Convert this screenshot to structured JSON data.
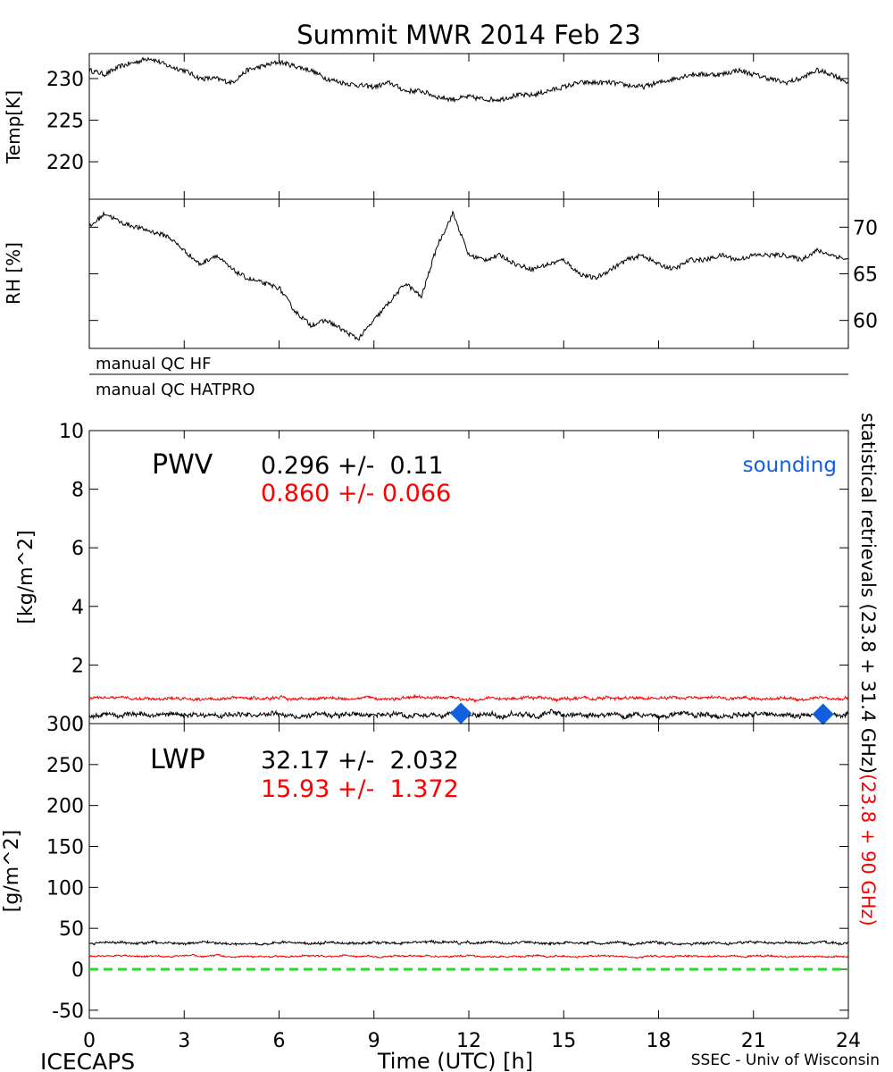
{
  "title": "Summit MWR 2014 Feb 23",
  "footer": {
    "left": "ICECAPS",
    "center": "Time (UTC) [h]",
    "right": "SSEC - Univ of Wisconsin"
  },
  "right_label": {
    "black": "statistical retrievals (23.8 + 31.4 GHz)",
    "red": "(23.8 + 90 GHz)"
  },
  "colors": {
    "black_series": "#000000",
    "red_series": "#ff0000",
    "sounding": "#1060e0",
    "zero_line": "#22dd22"
  },
  "chart_data": [
    {
      "id": "temp",
      "type": "line",
      "ylabel": "Temp[K]",
      "ylim": [
        215.5,
        233
      ],
      "yticks": [
        220,
        225,
        230
      ],
      "xlim": [
        0,
        24
      ],
      "series": [
        {
          "color": "#000000",
          "x": [
            0,
            0.5,
            1,
            1.5,
            1.9,
            2.5,
            3,
            3.5,
            4,
            4.5,
            5,
            5.5,
            6,
            6.5,
            7,
            7.5,
            8,
            8.5,
            9,
            9.5,
            10,
            10.5,
            11,
            11.5,
            12,
            12.5,
            13,
            13.5,
            14,
            14.5,
            15,
            15.5,
            16,
            16.5,
            17,
            17.5,
            18,
            18.5,
            19,
            19.5,
            20,
            20.5,
            21,
            21.5,
            22,
            22.5,
            23,
            23.5,
            24
          ],
          "values": [
            231,
            230.5,
            231.5,
            232,
            232.5,
            231.5,
            231,
            230,
            230,
            229.5,
            231,
            231.5,
            232,
            231.5,
            231,
            230,
            229.5,
            229.2,
            229,
            229.5,
            228.5,
            228.5,
            227.8,
            227.5,
            227.8,
            227.5,
            227.5,
            228,
            228,
            228.5,
            229,
            229.5,
            229.5,
            229.5,
            229.2,
            229,
            229.5,
            230,
            230.5,
            230.5,
            230.5,
            231,
            230.5,
            230,
            229.5,
            230,
            231,
            230.5,
            229.5
          ]
        }
      ]
    },
    {
      "id": "rh",
      "type": "line",
      "ylabel": "RH [%]",
      "ylim": [
        57,
        73
      ],
      "yticks": [
        60,
        65,
        70
      ],
      "xlim": [
        0,
        24
      ],
      "series": [
        {
          "color": "#000000",
          "x": [
            0,
            0.5,
            1,
            1.5,
            2,
            2.5,
            3,
            3.5,
            4,
            4.5,
            5,
            5.5,
            6,
            6.5,
            7,
            7.5,
            8,
            8.5,
            9,
            9.5,
            10,
            10.5,
            11,
            11.5,
            12,
            12.5,
            13,
            13.5,
            14,
            14.5,
            15,
            15.5,
            16,
            16.5,
            17,
            17.5,
            18,
            18.5,
            19,
            19.5,
            20,
            20.5,
            21,
            21.5,
            22,
            22.5,
            23,
            23.5,
            24
          ],
          "values": [
            70,
            71.5,
            70.5,
            70,
            69.5,
            69,
            67.5,
            66,
            67,
            65.5,
            64.5,
            64,
            63.5,
            61,
            59.5,
            60,
            59,
            58,
            60,
            62,
            64,
            62.5,
            68,
            71.5,
            67,
            66.5,
            67,
            66,
            65.5,
            66,
            66.5,
            65,
            64.5,
            65.5,
            66.5,
            67,
            66,
            65.5,
            66.5,
            66.5,
            67,
            66.5,
            67,
            67,
            67,
            66.5,
            67.5,
            67,
            66.5
          ]
        }
      ]
    },
    {
      "id": "pwv",
      "type": "line",
      "ylabel": "[kg/m^2]",
      "ylim": [
        0,
        10
      ],
      "yticks": [
        0,
        2,
        4,
        6,
        8,
        10
      ],
      "xlim": [
        0,
        24
      ],
      "label": "PWV",
      "stats": {
        "black": "0.296 +/-  0.11",
        "red": "0.860 +/- 0.066"
      },
      "legend": "sounding",
      "series": [
        {
          "color": "#ff0000",
          "mean": 0.86,
          "noise": 0.066
        },
        {
          "color": "#000000",
          "mean": 0.3,
          "noise": 0.11
        }
      ],
      "sounding": {
        "x": [
          11.75,
          23.2
        ],
        "values": [
          0.35,
          0.32
        ]
      }
    },
    {
      "id": "lwp",
      "type": "line",
      "ylabel": "[g/m^2]",
      "ylim": [
        -60,
        300
      ],
      "yticks": [
        -50,
        0,
        50,
        100,
        150,
        200,
        250,
        300
      ],
      "xlim": [
        0,
        24
      ],
      "xticks": [
        0,
        3,
        6,
        9,
        12,
        15,
        18,
        21,
        24
      ],
      "label": "LWP",
      "stats": {
        "black": "32.17 +/-  2.032",
        "red": "15.93 +/-  1.372"
      },
      "series": [
        {
          "color": "#000000",
          "mean": 32.2,
          "noise": 2.0
        },
        {
          "color": "#ff0000",
          "mean": 15.9,
          "noise": 1.4
        }
      ],
      "zero_line": 0
    }
  ],
  "qc": {
    "hf_label": "manual QC HF",
    "hatpro_label": "manual QC HATPRO"
  }
}
